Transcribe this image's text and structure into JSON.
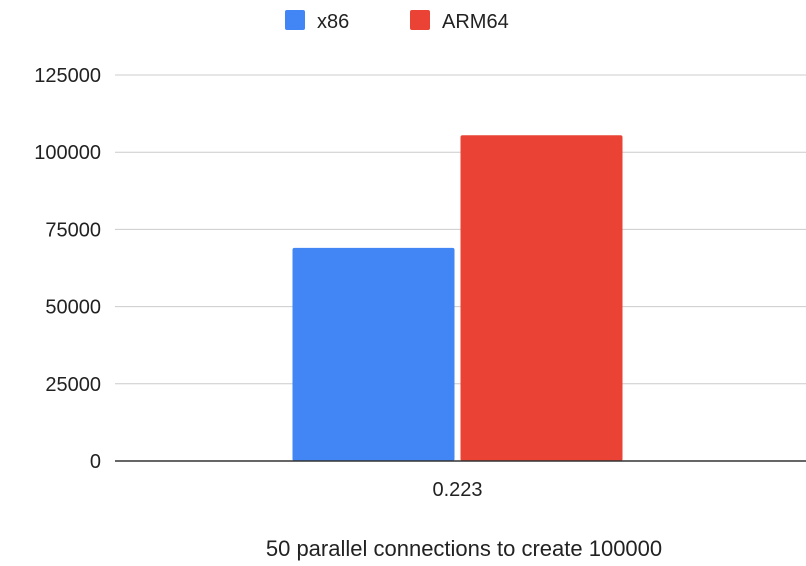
{
  "chart_data": {
    "type": "bar",
    "title": "",
    "xlabel": "50 parallel connections to create 100000",
    "ylabel": "",
    "categories": [
      "0.223"
    ],
    "series": [
      {
        "name": "x86",
        "color": "#4285F4",
        "values": [
          69000
        ]
      },
      {
        "name": "ARM64",
        "color": "#EA4335",
        "values": [
          105500
        ]
      }
    ],
    "ylim": [
      0,
      125000
    ],
    "yticks": [
      "0",
      "25000",
      "50000",
      "75000",
      "100000",
      "125000"
    ],
    "grid": true,
    "legend_position": "top-center"
  }
}
